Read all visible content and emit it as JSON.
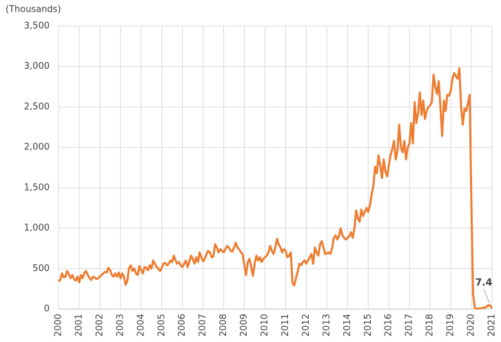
{
  "chart_data": {
    "type": "line",
    "y_axis_label": "(Thousands)",
    "categories": [
      "2000",
      null,
      null,
      null,
      null,
      null,
      null,
      null,
      null,
      null,
      null,
      null,
      "2001",
      null,
      null,
      null,
      null,
      null,
      null,
      null,
      null,
      null,
      null,
      null,
      "2002",
      null,
      null,
      null,
      null,
      null,
      null,
      null,
      null,
      null,
      null,
      null,
      "2003",
      null,
      null,
      null,
      null,
      null,
      null,
      null,
      null,
      null,
      null,
      null,
      "2004",
      null,
      null,
      null,
      null,
      null,
      null,
      null,
      null,
      null,
      null,
      null,
      "2005",
      null,
      null,
      null,
      null,
      null,
      null,
      null,
      null,
      null,
      null,
      null,
      "2006",
      null,
      null,
      null,
      null,
      null,
      null,
      null,
      null,
      null,
      null,
      null,
      "2007",
      null,
      null,
      null,
      null,
      null,
      null,
      null,
      null,
      null,
      null,
      null,
      "2008",
      null,
      null,
      null,
      null,
      null,
      null,
      null,
      null,
      null,
      null,
      null,
      "2009",
      null,
      null,
      null,
      null,
      null,
      null,
      null,
      null,
      null,
      null,
      null,
      "2010",
      null,
      null,
      null,
      null,
      null,
      null,
      null,
      null,
      null,
      null,
      null,
      "2011",
      null,
      null,
      null,
      null,
      null,
      null,
      null,
      null,
      null,
      null,
      null,
      "2012",
      null,
      null,
      null,
      null,
      null,
      null,
      null,
      null,
      null,
      null,
      null,
      "2013",
      null,
      null,
      null,
      null,
      null,
      null,
      null,
      null,
      null,
      null,
      null,
      "2014",
      null,
      null,
      null,
      null,
      null,
      null,
      null,
      null,
      null,
      null,
      null,
      "2015",
      null,
      null,
      null,
      null,
      null,
      null,
      null,
      null,
      null,
      null,
      null,
      "2016",
      null,
      null,
      null,
      null,
      null,
      null,
      null,
      null,
      null,
      null,
      null,
      "2017",
      null,
      null,
      null,
      null,
      null,
      null,
      null,
      null,
      null,
      null,
      null,
      "2018",
      null,
      null,
      null,
      null,
      null,
      null,
      null,
      null,
      null,
      null,
      null,
      "2019",
      null,
      null,
      null,
      null,
      null,
      null,
      null,
      null,
      null,
      null,
      null,
      "2020",
      null,
      null,
      null,
      null,
      null,
      null,
      null,
      null,
      null,
      null,
      null,
      "2021"
    ],
    "values": [
      340,
      360,
      440,
      390,
      400,
      470,
      430,
      380,
      420,
      370,
      350,
      400,
      330,
      420,
      380,
      450,
      470,
      420,
      380,
      360,
      400,
      390,
      370,
      380,
      400,
      420,
      440,
      460,
      450,
      510,
      480,
      420,
      400,
      440,
      400,
      450,
      380,
      440,
      400,
      300,
      350,
      510,
      540,
      470,
      500,
      440,
      420,
      530,
      480,
      440,
      520,
      510,
      480,
      540,
      500,
      600,
      560,
      520,
      500,
      470,
      510,
      560,
      570,
      540,
      560,
      600,
      580,
      660,
      600,
      560,
      580,
      540,
      520,
      560,
      600,
      520,
      580,
      660,
      620,
      560,
      640,
      580,
      700,
      640,
      590,
      620,
      680,
      720,
      700,
      640,
      650,
      800,
      760,
      700,
      740,
      720,
      700,
      740,
      780,
      760,
      720,
      710,
      760,
      820,
      760,
      740,
      700,
      680,
      540,
      420,
      580,
      620,
      520,
      410,
      560,
      660,
      600,
      640,
      580,
      620,
      640,
      660,
      700,
      780,
      720,
      680,
      760,
      870,
      800,
      760,
      700,
      740,
      720,
      640,
      660,
      700,
      320,
      290,
      380,
      460,
      560,
      540,
      580,
      600,
      560,
      600,
      640,
      680,
      560,
      760,
      700,
      660,
      800,
      840,
      760,
      680,
      690,
      700,
      680,
      750,
      880,
      910,
      860,
      900,
      1000,
      910,
      880,
      860,
      880,
      900,
      950,
      880,
      1000,
      1220,
      1120,
      1080,
      1230,
      1150,
      1200,
      1250,
      1200,
      1280,
      1420,
      1520,
      1760,
      1680,
      1900,
      1780,
      1620,
      1850,
      1700,
      1640,
      1780,
      1900,
      1980,
      2080,
      1850,
      1950,
      2280,
      2000,
      1940,
      2080,
      1850,
      2000,
      2050,
      2300,
      2050,
      2560,
      2300,
      2420,
      2680,
      2400,
      2580,
      2350,
      2450,
      2500,
      2520,
      2560,
      2900,
      2750,
      2660,
      2820,
      2500,
      2140,
      2580,
      2450,
      2650,
      2640,
      2700,
      2850,
      2920,
      2880,
      2850,
      2980,
      2500,
      2280,
      2480,
      2450,
      2550,
      2650,
      1300,
      170,
      10,
      5,
      5,
      8,
      10,
      15,
      20,
      30,
      50,
      40,
      7.4
    ],
    "color": "#ED7D31",
    "ylim": [
      0,
      3500
    ],
    "yticks": [
      0,
      500,
      {
        "value": 1000,
        "label": "1,000"
      },
      {
        "value": 1500,
        "label": "1,500"
      },
      {
        "value": 2000,
        "label": "2,000"
      },
      {
        "value": 2500,
        "label": "2,500"
      },
      {
        "value": 3000,
        "label": "3,000"
      },
      {
        "value": 3500,
        "label": "3,500"
      }
    ],
    "grid": true
  }
}
